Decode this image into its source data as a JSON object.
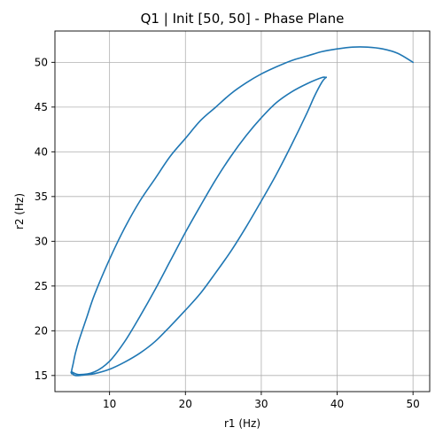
{
  "chart_data": {
    "type": "line",
    "title": "Q1 | Init [50, 50] - Phase Plane",
    "xlabel": "r1 (Hz)",
    "ylabel": "r2 (Hz)",
    "xlim": [
      2.8,
      52.2
    ],
    "ylim": [
      13.2,
      53.5
    ],
    "xticks": [
      10,
      20,
      30,
      40,
      50
    ],
    "yticks": [
      15,
      20,
      25,
      30,
      35,
      40,
      45,
      50
    ],
    "grid": true,
    "line_color": "#1f77b4",
    "series": [
      {
        "x": [
          50.0,
          48.0,
          46.0,
          44.0,
          42.0,
          40.0,
          38.0,
          36.0,
          34.0,
          32.0,
          30.0,
          28.0,
          26.0,
          24.0,
          22.0,
          20.0,
          18.0,
          16.0,
          14.0,
          12.0,
          10.0,
          8.0,
          7.0,
          6.0,
          5.5,
          5.2,
          5.0,
          5.1,
          5.5,
          6.0,
          7.0,
          8.0,
          10.0,
          12.0,
          14.0,
          16.0,
          18.0,
          20.0,
          22.0,
          24.0,
          26.0,
          28.0,
          30.0,
          32.0,
          34.0,
          36.0,
          37.0,
          38.0,
          38.5,
          38.5,
          38.0,
          36.0,
          34.0,
          32.0,
          30.0,
          28.0,
          26.0,
          24.0,
          22.0,
          20.0,
          18.0,
          16.0,
          14.0,
          12.0,
          10.0,
          8.0,
          6.0,
          5.0,
          5.0
        ],
        "y": [
          50.0,
          51.0,
          51.5,
          51.7,
          51.7,
          51.5,
          51.2,
          50.7,
          50.2,
          49.5,
          48.7,
          47.7,
          46.5,
          45.0,
          43.5,
          41.5,
          39.5,
          37.0,
          34.5,
          31.5,
          28.0,
          24.0,
          21.5,
          19.0,
          17.5,
          16.3,
          15.5,
          15.2,
          15.0,
          15.0,
          15.1,
          15.2,
          15.7,
          16.5,
          17.5,
          18.8,
          20.5,
          22.3,
          24.2,
          26.5,
          28.9,
          31.6,
          34.5,
          37.5,
          40.8,
          44.3,
          46.2,
          47.8,
          48.3,
          48.3,
          48.3,
          47.6,
          46.7,
          45.5,
          43.8,
          41.8,
          39.5,
          36.9,
          34.0,
          31.0,
          27.8,
          24.6,
          21.6,
          18.8,
          16.6,
          15.4,
          15.1,
          15.4,
          15.2
        ]
      }
    ]
  }
}
